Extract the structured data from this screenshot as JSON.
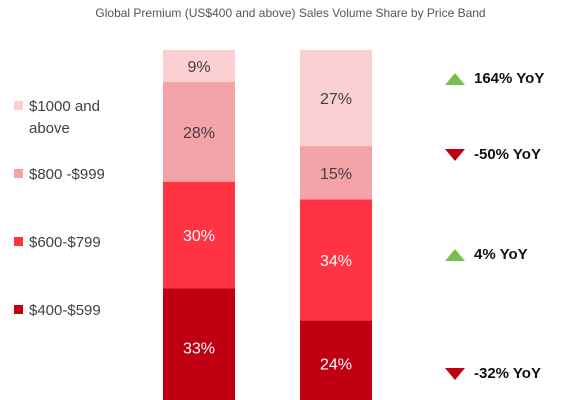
{
  "chart_data": {
    "type": "bar",
    "stacked": true,
    "title": "Global Premium (US$400 and above) Sales Volume Share by Price Band",
    "categories": [
      "",
      ""
    ],
    "series": [
      {
        "name": "$400-$599",
        "values": [
          33,
          24
        ],
        "color": "#c00012"
      },
      {
        "name": "$600-$799",
        "values": [
          30,
          34
        ],
        "color": "#ff3341"
      },
      {
        "name": "$800 -$999",
        "values": [
          28,
          15
        ],
        "color": "#f4a3a8"
      },
      {
        "name": "$1000 and above",
        "values": [
          9,
          27
        ],
        "color": "#fbd0d3"
      }
    ],
    "value_labels": [
      [
        "33%",
        "30%",
        "28%",
        "9%"
      ],
      [
        "24%",
        "34%",
        "15%",
        "27%"
      ]
    ],
    "ylim": [
      0,
      100
    ],
    "legend_position": "left",
    "yoy_annotations": [
      {
        "series": "$1000 and above",
        "label": "164% YoY",
        "direction": "up",
        "color": "#7cbd4f"
      },
      {
        "series": "$800 -$999",
        "label": "-50% YoY",
        "direction": "down",
        "color": "#c00012"
      },
      {
        "series": "$600-$799",
        "label": "4% YoY",
        "direction": "up",
        "color": "#7cbd4f"
      },
      {
        "series": "$400-$599",
        "label": "-32% YoY",
        "direction": "down",
        "color": "#c00012"
      }
    ]
  }
}
